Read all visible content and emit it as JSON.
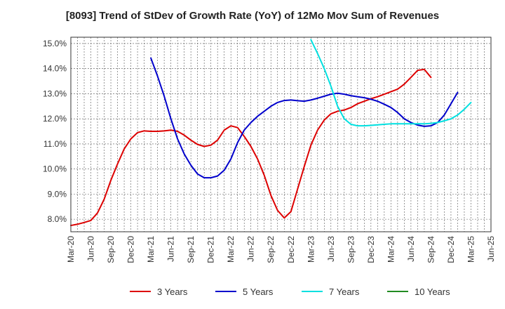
{
  "chart_data": {
    "type": "line",
    "title": "[8093]  Trend of StDev of Growth Rate (YoY) of 12Mo Mov Sum of Revenues",
    "xlabel": "",
    "ylabel": "",
    "ylim": [
      7.5,
      15.25
    ],
    "y_ticks": [
      8.0,
      9.0,
      10.0,
      11.0,
      12.0,
      13.0,
      14.0,
      15.0
    ],
    "y_tick_labels": [
      "8.0%",
      "9.0%",
      "10.0%",
      "11.0%",
      "12.0%",
      "13.0%",
      "14.0%",
      "15.0%"
    ],
    "x_tick_labels": [
      "Mar-20",
      "Jun-20",
      "Sep-20",
      "Dec-20",
      "Mar-21",
      "Jun-21",
      "Sep-21",
      "Dec-21",
      "Mar-22",
      "Jun-22",
      "Sep-22",
      "Dec-22",
      "Mar-23",
      "Jun-23",
      "Sep-23",
      "Dec-23",
      "Mar-24",
      "Jun-24",
      "Sep-24",
      "Dec-24",
      "Mar-25",
      "Jun-25"
    ],
    "grid": true,
    "legend_position": "bottom",
    "series": [
      {
        "name": "3 Years",
        "color": "#dd0000",
        "start_index": 0,
        "values": [
          7.75,
          7.8,
          7.87,
          7.95,
          8.25,
          8.8,
          9.55,
          10.2,
          10.8,
          11.2,
          11.45,
          11.52,
          11.5,
          11.5,
          11.52,
          11.55,
          11.5,
          11.35,
          11.15,
          10.98,
          10.9,
          10.95,
          11.15,
          11.55,
          11.72,
          11.65,
          11.3,
          10.9,
          10.4,
          9.75,
          8.95,
          8.35,
          8.05,
          8.3,
          9.2,
          10.1,
          10.95,
          11.55,
          11.95,
          12.2,
          12.3,
          12.35,
          12.45,
          12.6,
          12.7,
          12.8,
          12.88,
          12.98,
          13.08,
          13.18,
          13.38,
          13.65,
          13.93,
          13.97,
          13.65
        ]
      },
      {
        "name": "5 Years",
        "color": "#0000cc",
        "start_index": 12,
        "values": [
          14.42,
          13.7,
          12.9,
          12.0,
          11.2,
          10.6,
          10.15,
          9.8,
          9.65,
          9.65,
          9.72,
          9.95,
          10.4,
          11.05,
          11.55,
          11.85,
          12.1,
          12.3,
          12.5,
          12.65,
          12.73,
          12.75,
          12.72,
          12.7,
          12.75,
          12.82,
          12.9,
          12.98,
          13.02,
          12.98,
          12.92,
          12.88,
          12.84,
          12.78,
          12.7,
          12.58,
          12.45,
          12.25,
          12.0,
          11.85,
          11.75,
          11.7,
          11.72,
          11.85,
          12.15,
          12.6,
          13.05
        ]
      },
      {
        "name": "7 Years",
        "color": "#00e0e0",
        "start_index": 36,
        "values": [
          15.15,
          14.6,
          14.0,
          13.3,
          12.5,
          12.0,
          11.78,
          11.72,
          11.72,
          11.74,
          11.76,
          11.78,
          11.8,
          11.8,
          11.8,
          11.8,
          11.8,
          11.8,
          11.82,
          11.85,
          11.92,
          12.0,
          12.15,
          12.38,
          12.65
        ]
      },
      {
        "name": "10 Years",
        "color": "#228b22",
        "start_index": 0,
        "values": []
      }
    ]
  }
}
